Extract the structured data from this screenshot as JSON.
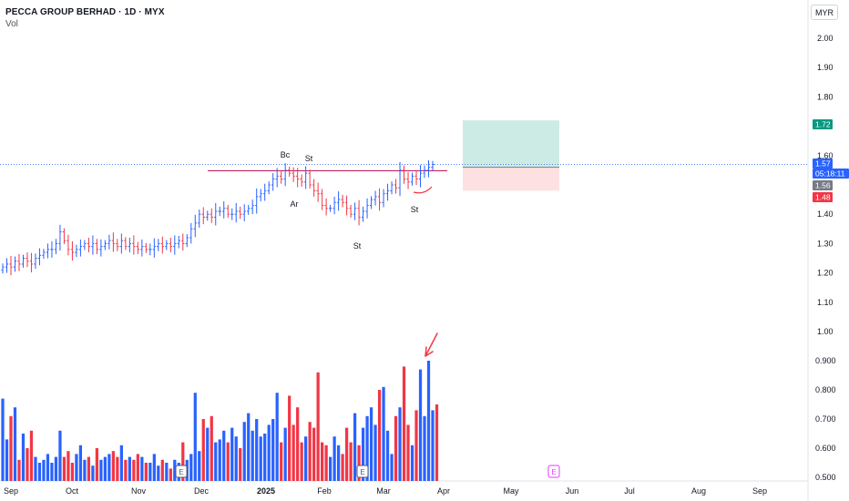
{
  "header": {
    "title": "PECCA GROUP BERHAD · 1D · MYX",
    "vol_label": "Vol",
    "currency_button": "MYR"
  },
  "chart_data": {
    "type": "candlestick_with_volume",
    "price_axis": {
      "ticks": [
        "2.00",
        "1.90",
        "1.80",
        "1.60",
        "1.40",
        "1.30",
        "1.20",
        "1.10",
        "1.00"
      ],
      "range": [
        0.98,
        2.08
      ]
    },
    "volume_axis": {
      "ticks": [
        "0.900",
        "0.800",
        "0.700",
        "0.600",
        "0.500"
      ],
      "range": [
        0.5,
        1.0
      ]
    },
    "time_axis": {
      "labels": [
        "Sep",
        "Oct",
        "Nov",
        "Dec",
        "2025",
        "Feb",
        "Mar",
        "Apr",
        "May",
        "Jun",
        "Jul",
        "Aug",
        "Sep"
      ],
      "bold": "2025"
    },
    "price_tags": [
      {
        "label": "1.72",
        "value": 1.72,
        "color": "#089981"
      },
      {
        "label": "1.57",
        "value": 1.57,
        "color": "#2962ff"
      },
      {
        "label": "05:18:11",
        "value": 1.545,
        "color": "#2962ff"
      },
      {
        "label": "1.56",
        "value": 1.56,
        "color": "#787b86"
      },
      {
        "label": "1.48",
        "value": 1.48,
        "color": "#f23645"
      }
    ],
    "position": {
      "entry": 1.56,
      "target": 1.72,
      "stop": 1.48
    },
    "resistance_line": 1.548,
    "current_price_line": 1.57,
    "annotations": [
      "Bc",
      "St",
      "Ar",
      "St",
      "St"
    ],
    "earnings_markers": [
      "E",
      "E",
      "E"
    ],
    "colors": {
      "up": "#2962ff",
      "down": "#f23645",
      "target_zone": "#cdebe5",
      "stop_zone": "#fde1e1",
      "annotation": "#f23645"
    },
    "price_series_daily_close": [
      1.22,
      1.23,
      1.22,
      1.24,
      1.23,
      1.25,
      1.24,
      1.23,
      1.25,
      1.26,
      1.27,
      1.28,
      1.28,
      1.3,
      1.34,
      1.31,
      1.28,
      1.27,
      1.28,
      1.29,
      1.3,
      1.29,
      1.3,
      1.28,
      1.29,
      1.3,
      1.31,
      1.3,
      1.29,
      1.31,
      1.29,
      1.3,
      1.29,
      1.28,
      1.29,
      1.28,
      1.28,
      1.29,
      1.3,
      1.29,
      1.3,
      1.29,
      1.3,
      1.31,
      1.3,
      1.32,
      1.35,
      1.37,
      1.4,
      1.39,
      1.4,
      1.39,
      1.41,
      1.41,
      1.42,
      1.4,
      1.4,
      1.41,
      1.4,
      1.41,
      1.42,
      1.43,
      1.46,
      1.47,
      1.48,
      1.5,
      1.52,
      1.53,
      1.52,
      1.55,
      1.54,
      1.53,
      1.52,
      1.51,
      1.54,
      1.5,
      1.48,
      1.47,
      1.43,
      1.42,
      1.42,
      1.44,
      1.45,
      1.44,
      1.42,
      1.4,
      1.42,
      1.39,
      1.41,
      1.43,
      1.45,
      1.46,
      1.44,
      1.47,
      1.48,
      1.5,
      1.49,
      1.55,
      1.52,
      1.51,
      1.53,
      1.52,
      1.54,
      1.55,
      1.56,
      1.57
    ],
    "volume_series": [
      0.77,
      0.63,
      0.71,
      0.74,
      0.56,
      0.65,
      0.6,
      0.66,
      0.57,
      0.55,
      0.56,
      0.58,
      0.55,
      0.57,
      0.66,
      0.57,
      0.59,
      0.55,
      0.58,
      0.61,
      0.56,
      0.57,
      0.54,
      0.6,
      0.56,
      0.57,
      0.58,
      0.59,
      0.57,
      0.61,
      0.56,
      0.57,
      0.56,
      0.58,
      0.57,
      0.55,
      0.55,
      0.58,
      0.54,
      0.56,
      0.55,
      0.53,
      0.56,
      0.55,
      0.62,
      0.56,
      0.58,
      0.79,
      0.59,
      0.7,
      0.67,
      0.71,
      0.62,
      0.63,
      0.66,
      0.62,
      0.67,
      0.64,
      0.6,
      0.69,
      0.72,
      0.66,
      0.7,
      0.64,
      0.65,
      0.68,
      0.7,
      0.79,
      0.62,
      0.67,
      0.78,
      0.68,
      0.74,
      0.62,
      0.64,
      0.69,
      0.67,
      0.86,
      0.62,
      0.61,
      0.57,
      0.64,
      0.61,
      0.58,
      0.67,
      0.62,
      0.72,
      0.61,
      0.67,
      0.71,
      0.74,
      0.68,
      0.8,
      0.81,
      0.66,
      0.58,
      0.71,
      0.74,
      0.88,
      0.68,
      0.61,
      0.73,
      0.87,
      0.71,
      0.9,
      0.73,
      0.75
    ]
  }
}
